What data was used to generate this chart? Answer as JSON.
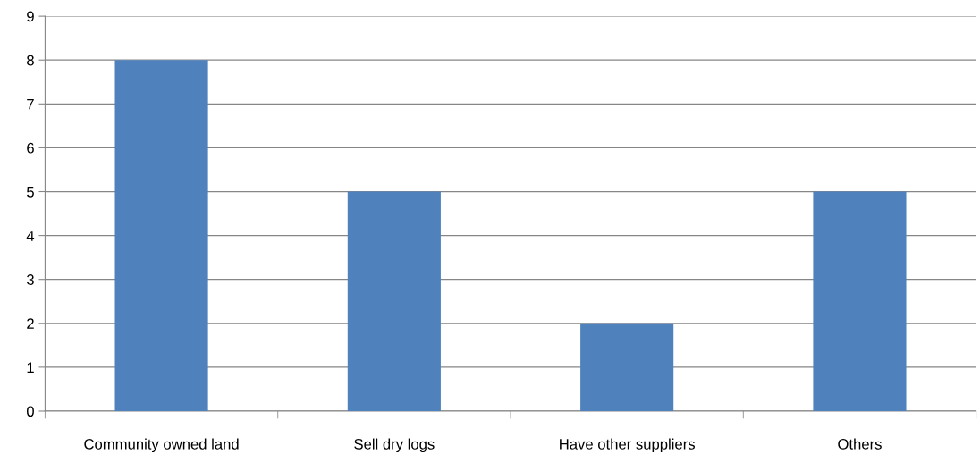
{
  "chart_data": {
    "type": "bar",
    "categories": [
      "Community owned land",
      "Sell dry logs",
      "Have other suppliers",
      "Others"
    ],
    "values": [
      8,
      5,
      2,
      5
    ],
    "color": "#4f81bd",
    "ylim": [
      0,
      9
    ],
    "yticks": [
      0,
      1,
      2,
      3,
      4,
      5,
      6,
      7,
      8,
      9
    ],
    "grid": "y"
  }
}
